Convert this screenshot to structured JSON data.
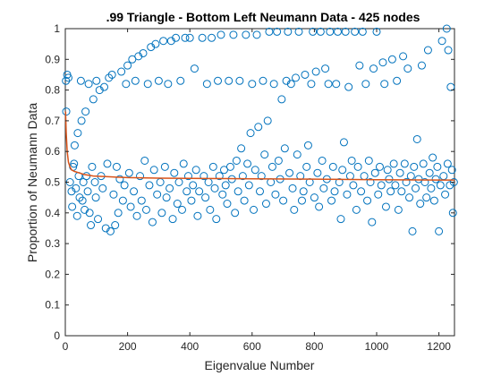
{
  "chart_data": {
    "type": "scatter",
    "title": ".99 Triangle - Bottom Left Neumann Data - 425 nodes",
    "xlabel": "Eigenvalue Number",
    "ylabel": "Proportion of Neumann Data",
    "xlim": [
      0,
      1250
    ],
    "ylim": [
      0,
      1
    ],
    "xticks": [
      "0",
      "200",
      "400",
      "600",
      "800",
      "1000",
      "1200"
    ],
    "yticks": [
      "0",
      "0.1",
      "0.2",
      "0.3",
      "0.4",
      "0.5",
      "0.6",
      "0.7",
      "0.8",
      "0.9",
      "1"
    ],
    "grid": false,
    "colors": {
      "points": "#0072BD",
      "trend": "#D95319"
    },
    "trend_curve": {
      "x": [
        1,
        3,
        6,
        10,
        15,
        20,
        30,
        45,
        60,
        90,
        130,
        200,
        300,
        450,
        600,
        800,
        1000,
        1200,
        1250
      ],
      "y": [
        0.73,
        0.66,
        0.6,
        0.565,
        0.55,
        0.54,
        0.535,
        0.53,
        0.525,
        0.52,
        0.518,
        0.515,
        0.513,
        0.512,
        0.511,
        0.51,
        0.508,
        0.507,
        0.507
      ]
    },
    "series": [
      {
        "values": [
          [
            2,
            0.83
          ],
          [
            3,
            0.73
          ],
          [
            6,
            0.85
          ],
          [
            10,
            0.84
          ],
          [
            15,
            0.5
          ],
          [
            20,
            0.47
          ],
          [
            22,
            0.42
          ],
          [
            25,
            0.55
          ],
          [
            28,
            0.56
          ],
          [
            30,
            0.62
          ],
          [
            34,
            0.48
          ],
          [
            38,
            0.39
          ],
          [
            40,
            0.66
          ],
          [
            43,
            0.52
          ],
          [
            46,
            0.45
          ],
          [
            50,
            0.83
          ],
          [
            52,
            0.7
          ],
          [
            55,
            0.44
          ],
          [
            58,
            0.5
          ],
          [
            62,
            0.41
          ],
          [
            65,
            0.73
          ],
          [
            68,
            0.52
          ],
          [
            72,
            0.47
          ],
          [
            75,
            0.82
          ],
          [
            78,
            0.4
          ],
          [
            82,
            0.36
          ],
          [
            86,
            0.55
          ],
          [
            90,
            0.77
          ],
          [
            95,
            0.5
          ],
          [
            98,
            0.45
          ],
          [
            100,
            0.83
          ],
          [
            105,
            0.38
          ],
          [
            110,
            0.8
          ],
          [
            115,
            0.52
          ],
          [
            120,
            0.48
          ],
          [
            125,
            0.81
          ],
          [
            130,
            0.35
          ],
          [
            135,
            0.56
          ],
          [
            140,
            0.84
          ],
          [
            145,
            0.34
          ],
          [
            150,
            0.85
          ],
          [
            155,
            0.46
          ],
          [
            160,
            0.36
          ],
          [
            165,
            0.55
          ],
          [
            170,
            0.4
          ],
          [
            175,
            0.51
          ],
          [
            180,
            0.86
          ],
          [
            185,
            0.44
          ],
          [
            190,
            0.49
          ],
          [
            195,
            0.82
          ],
          [
            200,
            0.88
          ],
          [
            205,
            0.53
          ],
          [
            210,
            0.42
          ],
          [
            215,
            0.9
          ],
          [
            220,
            0.47
          ],
          [
            225,
            0.83
          ],
          [
            230,
            0.39
          ],
          [
            235,
            0.91
          ],
          [
            240,
            0.52
          ],
          [
            245,
            0.44
          ],
          [
            250,
            0.92
          ],
          [
            255,
            0.57
          ],
          [
            260,
            0.41
          ],
          [
            265,
            0.82
          ],
          [
            270,
            0.49
          ],
          [
            275,
            0.94
          ],
          [
            280,
            0.37
          ],
          [
            285,
            0.54
          ],
          [
            290,
            0.95
          ],
          [
            295,
            0.46
          ],
          [
            300,
            0.83
          ],
          [
            305,
            0.5
          ],
          [
            310,
            0.4
          ],
          [
            315,
            0.96
          ],
          [
            320,
            0.55
          ],
          [
            325,
            0.45
          ],
          [
            330,
            0.82
          ],
          [
            335,
            0.48
          ],
          [
            340,
            0.96
          ],
          [
            345,
            0.38
          ],
          [
            350,
            0.53
          ],
          [
            355,
            0.97
          ],
          [
            360,
            0.43
          ],
          [
            365,
            0.5
          ],
          [
            370,
            0.83
          ],
          [
            375,
            0.41
          ],
          [
            380,
            0.56
          ],
          [
            385,
            0.97
          ],
          [
            390,
            0.47
          ],
          [
            395,
            0.52
          ],
          [
            400,
            0.97
          ],
          [
            405,
            0.44
          ],
          [
            410,
            0.49
          ],
          [
            415,
            0.87
          ],
          [
            420,
            0.54
          ],
          [
            425,
            0.39
          ],
          [
            430,
            0.47
          ],
          [
            440,
            0.97
          ],
          [
            445,
            0.52
          ],
          [
            450,
            0.45
          ],
          [
            455,
            0.82
          ],
          [
            460,
            0.5
          ],
          [
            465,
            0.41
          ],
          [
            470,
            0.97
          ],
          [
            475,
            0.55
          ],
          [
            480,
            0.48
          ],
          [
            485,
            0.38
          ],
          [
            490,
            0.83
          ],
          [
            495,
            0.52
          ],
          [
            500,
            0.98
          ],
          [
            505,
            0.46
          ],
          [
            510,
            0.54
          ],
          [
            515,
            0.49
          ],
          [
            520,
            0.43
          ],
          [
            525,
            0.83
          ],
          [
            530,
            0.55
          ],
          [
            535,
            0.51
          ],
          [
            540,
            0.98
          ],
          [
            545,
            0.4
          ],
          [
            550,
            0.57
          ],
          [
            555,
            0.47
          ],
          [
            560,
            0.83
          ],
          [
            565,
            0.61
          ],
          [
            570,
            0.52
          ],
          [
            575,
            0.44
          ],
          [
            580,
            0.98
          ],
          [
            585,
            0.56
          ],
          [
            590,
            0.49
          ],
          [
            595,
            0.66
          ],
          [
            600,
            0.82
          ],
          [
            605,
            0.41
          ],
          [
            610,
            0.54
          ],
          [
            615,
            0.98
          ],
          [
            620,
            0.68
          ],
          [
            625,
            0.47
          ],
          [
            630,
            0.52
          ],
          [
            635,
            0.83
          ],
          [
            640,
            0.59
          ],
          [
            645,
            0.43
          ],
          [
            650,
            0.7
          ],
          [
            655,
            0.99
          ],
          [
            660,
            0.5
          ],
          [
            665,
            0.55
          ],
          [
            670,
            0.82
          ],
          [
            675,
            0.46
          ],
          [
            680,
            0.99
          ],
          [
            685,
            0.57
          ],
          [
            690,
            0.51
          ],
          [
            695,
            0.77
          ],
          [
            700,
            0.44
          ],
          [
            705,
            0.61
          ],
          [
            710,
            0.83
          ],
          [
            715,
            0.99
          ],
          [
            720,
            0.53
          ],
          [
            725,
            0.82
          ],
          [
            730,
            0.48
          ],
          [
            735,
            0.41
          ],
          [
            740,
            0.84
          ],
          [
            745,
            0.59
          ],
          [
            750,
            0.99
          ],
          [
            755,
            0.52
          ],
          [
            760,
            0.44
          ],
          [
            765,
            0.47
          ],
          [
            770,
            0.85
          ],
          [
            775,
            0.55
          ],
          [
            780,
            0.62
          ],
          [
            785,
            0.5
          ],
          [
            790,
            0.82
          ],
          [
            795,
            0.99
          ],
          [
            800,
            0.45
          ],
          [
            805,
            0.86
          ],
          [
            810,
            0.53
          ],
          [
            815,
            0.42
          ],
          [
            820,
            0.99
          ],
          [
            825,
            0.57
          ],
          [
            830,
            0.48
          ],
          [
            835,
            0.87
          ],
          [
            840,
            0.51
          ],
          [
            845,
            0.82
          ],
          [
            850,
            0.99
          ],
          [
            855,
            0.44
          ],
          [
            860,
            0.55
          ],
          [
            865,
            0.47
          ],
          [
            870,
            0.82
          ],
          [
            875,
            0.99
          ],
          [
            880,
            0.5
          ],
          [
            885,
            0.38
          ],
          [
            890,
            0.54
          ],
          [
            895,
            0.63
          ],
          [
            900,
            0.99
          ],
          [
            905,
            0.46
          ],
          [
            910,
            0.81
          ],
          [
            915,
            0.52
          ],
          [
            920,
            0.57
          ],
          [
            925,
            0.49
          ],
          [
            930,
            0.99
          ],
          [
            935,
            0.41
          ],
          [
            940,
            0.55
          ],
          [
            945,
            0.88
          ],
          [
            950,
            0.47
          ],
          [
            955,
            0.99
          ],
          [
            960,
            0.52
          ],
          [
            965,
            0.82
          ],
          [
            970,
            0.44
          ],
          [
            975,
            0.57
          ],
          [
            980,
            0.5
          ],
          [
            985,
            0.37
          ],
          [
            990,
            0.87
          ],
          [
            995,
            0.53
          ],
          [
            1000,
            0.99
          ],
          [
            1005,
            0.46
          ],
          [
            1010,
            0.55
          ],
          [
            1015,
            0.49
          ],
          [
            1020,
            0.89
          ],
          [
            1025,
            0.82
          ],
          [
            1030,
            0.42
          ],
          [
            1035,
            0.54
          ],
          [
            1040,
            0.51
          ],
          [
            1045,
            0.47
          ],
          [
            1050,
            0.9
          ],
          [
            1055,
            0.56
          ],
          [
            1060,
            0.49
          ],
          [
            1065,
            0.83
          ],
          [
            1070,
            0.41
          ],
          [
            1075,
            0.53
          ],
          [
            1080,
            0.47
          ],
          [
            1085,
            0.91
          ],
          [
            1090,
            0.56
          ],
          [
            1095,
            0.5
          ],
          [
            1100,
            0.87
          ],
          [
            1105,
            0.45
          ],
          [
            1110,
            0.52
          ],
          [
            1115,
            0.34
          ],
          [
            1120,
            0.55
          ],
          [
            1125,
            0.48
          ],
          [
            1130,
            0.64
          ],
          [
            1135,
            0.51
          ],
          [
            1140,
            0.43
          ],
          [
            1145,
            0.88
          ],
          [
            1150,
            0.56
          ],
          [
            1155,
            0.5
          ],
          [
            1160,
            0.45
          ],
          [
            1165,
            0.93
          ],
          [
            1170,
            0.53
          ],
          [
            1175,
            0.48
          ],
          [
            1180,
            0.58
          ],
          [
            1185,
            0.44
          ],
          [
            1190,
            0.51
          ],
          [
            1195,
            0.55
          ],
          [
            1200,
            0.34
          ],
          [
            1205,
            0.49
          ],
          [
            1210,
            0.96
          ],
          [
            1215,
            0.52
          ],
          [
            1220,
            0.46
          ],
          [
            1225,
            1.0
          ],
          [
            1228,
            0.56
          ],
          [
            1230,
            0.93
          ],
          [
            1235,
            0.49
          ],
          [
            1238,
            0.81
          ],
          [
            1242,
            0.54
          ],
          [
            1245,
            0.4
          ],
          [
            1248,
            0.5
          ]
        ]
      }
    ]
  }
}
